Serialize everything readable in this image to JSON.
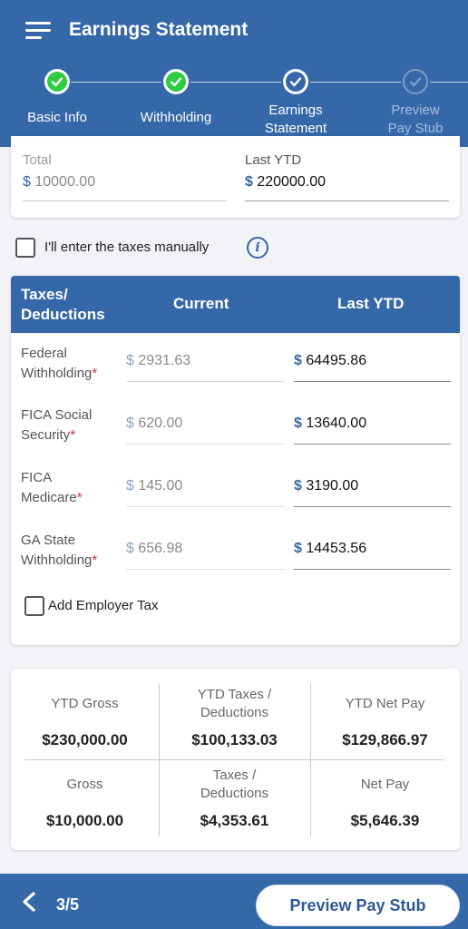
{
  "app": {
    "title": "Earnings Statement"
  },
  "stepper": {
    "steps": [
      {
        "label": "Basic Info",
        "state": "done"
      },
      {
        "label": "Withholding",
        "state": "done"
      },
      {
        "label": "Earnings Statement",
        "line1": "Earnings",
        "line2": "Statement",
        "state": "current"
      },
      {
        "label": "Preview Pay Stub",
        "line1": "Preview",
        "line2": "Pay Stub",
        "state": "todo"
      }
    ]
  },
  "earnings": {
    "total_label": "Total",
    "total_currency": "$",
    "total_value": "10000.00",
    "last_ytd_label": "Last YTD",
    "last_ytd_currency": "$",
    "last_ytd_value": "220000.00"
  },
  "manual_taxes": {
    "label": "I'll enter the taxes manually",
    "checked": false
  },
  "taxes_table": {
    "headers": {
      "col1_line1": "Taxes/",
      "col1_line2": "Deductions",
      "col2": "Current",
      "col3": "Last YTD"
    },
    "rows": [
      {
        "name_line1": "Federal",
        "name_line2": "Withholding",
        "required": "*",
        "currency": "$",
        "current": "2931.63",
        "ytd": "64495.86"
      },
      {
        "name_line1": "FICA Social",
        "name_line2": "Security",
        "required": "*",
        "currency": "$",
        "current": "620.00",
        "ytd": "13640.00"
      },
      {
        "name_line1": "FICA",
        "name_line2": "Medicare",
        "required": "*",
        "currency": "$",
        "current": "145.00",
        "ytd": "3190.00"
      },
      {
        "name_line1": "GA State",
        "name_line2": "Withholding",
        "required": "*",
        "currency": "$",
        "current": "656.98",
        "ytd": "14453.56"
      }
    ],
    "employer_tax_label": "Add Employer Tax"
  },
  "summary": {
    "ytd_gross_label": "YTD Gross",
    "ytd_gross_value": "$230,000.00",
    "ytd_taxes_label_line1": "YTD Taxes /",
    "ytd_taxes_label_line2": "Deductions",
    "ytd_taxes_value": "$100,133.03",
    "ytd_net_label": "YTD Net Pay",
    "ytd_net_value": "$129,866.97",
    "gross_label": "Gross",
    "gross_value": "$10,000.00",
    "taxes_label_line1": "Taxes /",
    "taxes_label_line2": "Deductions",
    "taxes_value": "$4,353.61",
    "net_label": "Net Pay",
    "net_value": "$5,646.39"
  },
  "footer": {
    "step_count": "3/5",
    "preview_button": "Preview Pay Stub"
  },
  "colors": {
    "primary": "#3568a8",
    "success": "#2ecc40",
    "required": "#e0282e"
  },
  "icons": {
    "menu": "menu-icon",
    "check": "check-icon",
    "info": "info-icon",
    "back": "chevron-left-icon"
  }
}
